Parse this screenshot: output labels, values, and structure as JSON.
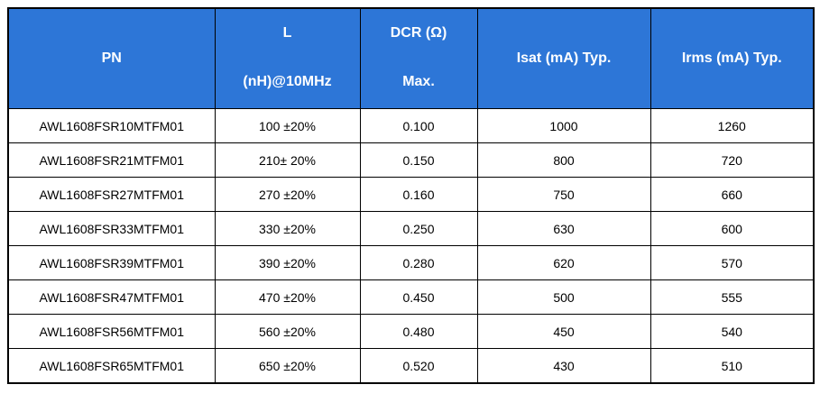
{
  "colors": {
    "header_bg": "#2D76D7",
    "header_text": "#FFFFFF",
    "body_bg": "#FFFFFF",
    "body_text": "#000000",
    "border": "#000000"
  },
  "header": {
    "pn": "PN",
    "l_line1": "L",
    "l_line2": "(nH)@10MHz",
    "dcr_line1": "DCR (Ω)",
    "dcr_line2": "Max.",
    "isat": "Isat (mA) Typ.",
    "irms": "Irms (mA) Typ."
  },
  "rows": [
    {
      "pn": "AWL1608FSR10MTFM01",
      "l": "100 ±20%",
      "dcr": "0.100",
      "isat": "1000",
      "irms": "1260"
    },
    {
      "pn": "AWL1608FSR21MTFM01",
      "l": "210± 20%",
      "dcr": "0.150",
      "isat": "800",
      "irms": "720"
    },
    {
      "pn": "AWL1608FSR27MTFM01",
      "l": "270 ±20%",
      "dcr": "0.160",
      "isat": "750",
      "irms": "660"
    },
    {
      "pn": "AWL1608FSR33MTFM01",
      "l": "330 ±20%",
      "dcr": "0.250",
      "isat": "630",
      "irms": "600"
    },
    {
      "pn": "AWL1608FSR39MTFM01",
      "l": "390 ±20%",
      "dcr": "0.280",
      "isat": "620",
      "irms": "570"
    },
    {
      "pn": "AWL1608FSR47MTFM01",
      "l": "470 ±20%",
      "dcr": "0.450",
      "isat": "500",
      "irms": "555"
    },
    {
      "pn": "AWL1608FSR56MTFM01",
      "l": "560 ±20%",
      "dcr": "0.480",
      "isat": "450",
      "irms": "540"
    },
    {
      "pn": "AWL1608FSR65MTFM01",
      "l": "650 ±20%",
      "dcr": "0.520",
      "isat": "430",
      "irms": "510"
    }
  ]
}
